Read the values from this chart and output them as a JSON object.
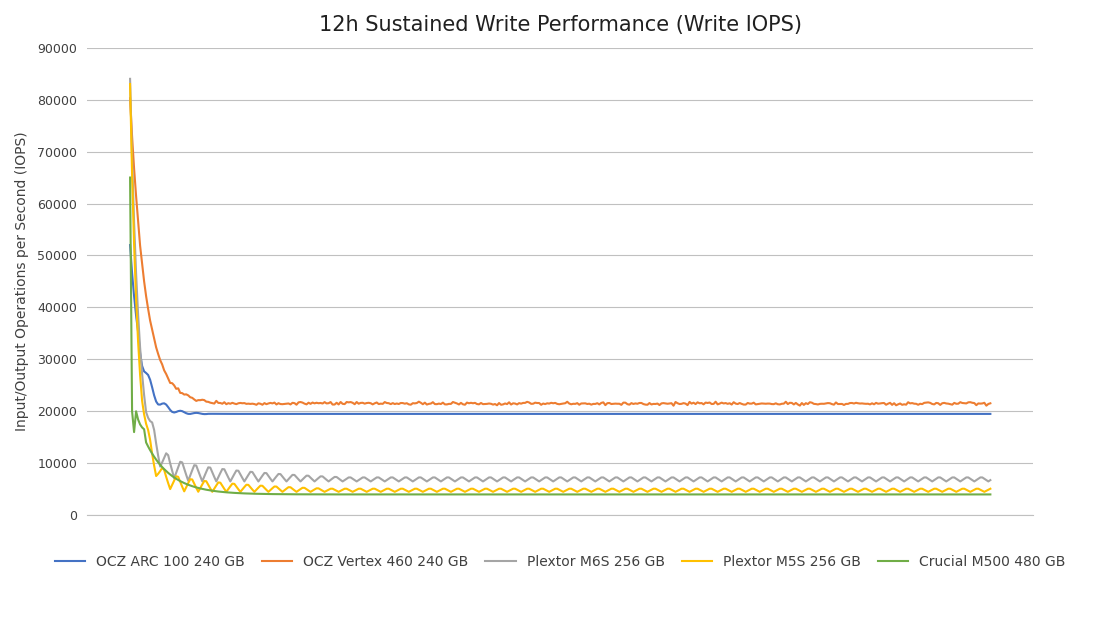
{
  "title": "12h Sustained Write Performance (Write IOPS)",
  "ylabel": "Input/Output Operations per Second (IOPS)",
  "ylim": [
    0,
    90000
  ],
  "yticks": [
    0,
    10000,
    20000,
    30000,
    40000,
    50000,
    60000,
    70000,
    80000,
    90000
  ],
  "background_color": "#ffffff",
  "grid_color": "#c0c0c0",
  "series": [
    {
      "label": "OCZ ARC 100 240 GB",
      "color": "#4472c4",
      "linewidth": 1.5
    },
    {
      "label": "OCZ Vertex 460 240 GB",
      "color": "#ed7d31",
      "linewidth": 1.5
    },
    {
      "label": "Plextor M6S 256 GB",
      "color": "#a5a5a5",
      "linewidth": 1.5
    },
    {
      "label": "Plextor M5S 256 GB",
      "color": "#ffc000",
      "linewidth": 1.5
    },
    {
      "label": "Crucial M500 480 GB",
      "color": "#70ad47",
      "linewidth": 1.5
    }
  ],
  "title_fontsize": 15,
  "legend_fontsize": 10,
  "axis_label_fontsize": 10,
  "tick_fontsize": 9
}
